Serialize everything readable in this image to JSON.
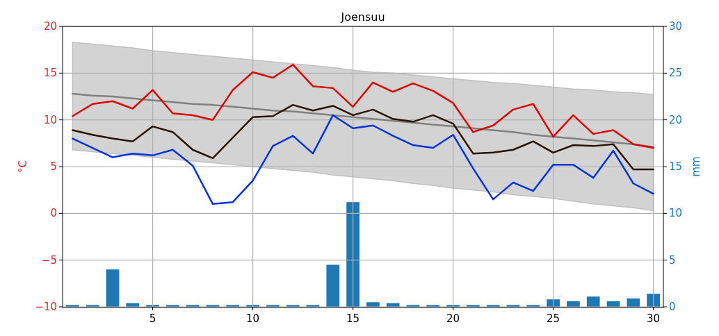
{
  "chart_data": {
    "type": "line",
    "title": "Joensuu",
    "ylabel": "°C",
    "y2label": "mm",
    "x": [
      1,
      2,
      3,
      4,
      5,
      6,
      7,
      8,
      9,
      10,
      11,
      12,
      13,
      14,
      15,
      16,
      17,
      18,
      19,
      20,
      21,
      22,
      23,
      24,
      25,
      26,
      27,
      28,
      29,
      30
    ],
    "xlim": [
      0.5,
      30.5
    ],
    "xticks": [
      5,
      10,
      15,
      20,
      25,
      30
    ],
    "ylim": [
      -10,
      20
    ],
    "yticks": [
      -10,
      -5,
      0,
      5,
      10,
      15,
      20
    ],
    "y2lim": [
      0,
      30
    ],
    "y2ticks": [
      0,
      5,
      10,
      15,
      20,
      25,
      30
    ],
    "grid": true,
    "series": [
      {
        "type": "bar",
        "axis": "y2",
        "color": "#1f77b4",
        "values": [
          0.2,
          0.2,
          4.0,
          0.4,
          0.2,
          0.2,
          0.2,
          0.2,
          0.2,
          0.2,
          0.2,
          0.2,
          0.2,
          4.5,
          11.2,
          0.5,
          0.4,
          0.2,
          0.2,
          0.2,
          0.2,
          0.2,
          0.2,
          0.2,
          0.8,
          0.6,
          1.1,
          0.6,
          0.9,
          1.4
        ]
      },
      {
        "color": "#808080",
        "values": [
          12.8,
          12.6,
          12.5,
          12.3,
          12.1,
          11.9,
          11.7,
          11.6,
          11.4,
          11.2,
          11.0,
          10.9,
          10.7,
          10.5,
          10.3,
          10.1,
          9.9,
          9.7,
          9.5,
          9.3,
          9.1,
          8.9,
          8.7,
          8.4,
          8.2,
          8.0,
          7.8,
          7.6,
          7.4,
          7.1
        ],
        "lower": [
          6.8,
          6.6,
          6.4,
          6.2,
          6.0,
          5.8,
          5.6,
          5.4,
          5.2,
          5.0,
          4.8,
          4.6,
          4.4,
          4.1,
          3.9,
          3.7,
          3.5,
          3.2,
          3.0,
          2.7,
          2.5,
          2.3,
          2.0,
          1.8,
          1.6,
          1.3,
          1.0,
          0.8,
          0.6,
          0.3
        ],
        "upper": [
          18.3,
          18.1,
          17.9,
          17.7,
          17.4,
          17.2,
          17.0,
          16.8,
          16.6,
          16.4,
          16.2,
          16.0,
          15.8,
          15.6,
          15.3,
          15.1,
          15.0,
          14.8,
          14.6,
          14.4,
          14.2,
          14.0,
          13.9,
          13.7,
          13.5,
          13.3,
          13.2,
          13.0,
          12.9,
          12.7
        ]
      },
      {
        "color": "#dd0000",
        "values": [
          10.4,
          11.7,
          12.0,
          11.2,
          13.2,
          10.7,
          10.5,
          10.0,
          13.2,
          15.1,
          14.5,
          15.9,
          13.6,
          13.4,
          11.4,
          14.0,
          13.0,
          13.9,
          13.1,
          11.8,
          8.7,
          9.4,
          11.1,
          11.7,
          8.2,
          10.5,
          8.5,
          8.9,
          7.4,
          7.0
        ]
      },
      {
        "color": "#2b1100",
        "values": [
          8.9,
          8.4,
          8.0,
          7.7,
          9.3,
          8.7,
          6.8,
          5.9,
          8.1,
          10.3,
          10.4,
          11.6,
          11.0,
          11.5,
          10.5,
          11.1,
          10.1,
          9.8,
          10.5,
          9.6,
          6.4,
          6.5,
          6.8,
          7.7,
          6.5,
          7.3,
          7.2,
          7.4,
          4.7,
          4.7
        ]
      },
      {
        "color": "#0033dd",
        "values": [
          8.0,
          7.0,
          6.0,
          6.4,
          6.2,
          6.8,
          5.1,
          1.0,
          1.2,
          3.5,
          7.2,
          8.3,
          6.4,
          10.5,
          9.1,
          9.4,
          8.3,
          7.3,
          7.0,
          8.4,
          4.8,
          1.5,
          3.3,
          2.4,
          5.2,
          5.2,
          3.8,
          6.7,
          3.2,
          2.1
        ]
      }
    ]
  }
}
